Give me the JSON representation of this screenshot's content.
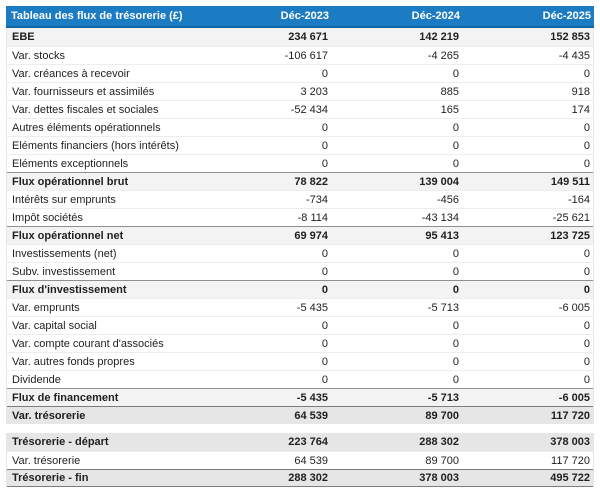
{
  "table": {
    "title": "Tableau des flux de trésorerie (£)",
    "columns": [
      "Déc-2023",
      "Déc-2024",
      "Déc-2025"
    ],
    "colors": {
      "header_bg": "#1b7cc4",
      "header_border": "#1266a4",
      "header_text": "#ffffff",
      "subtotal_row_bg": "#f3f3f3",
      "total_row_bg": "#e6e6e6",
      "row_separator": "#ededed",
      "strong_border": "#7d7d7d"
    },
    "sections": [
      {
        "rows": [
          {
            "label": "EBE",
            "values": [
              "234 671",
              "142 219",
              "152 853"
            ],
            "style": "subtotal"
          },
          {
            "label": "Var. stocks",
            "values": [
              "-106 617",
              "-4 265",
              "-4 435"
            ],
            "style": "normal"
          },
          {
            "label": "Var. créances à recevoir",
            "values": [
              "0",
              "0",
              "0"
            ],
            "style": "normal"
          },
          {
            "label": "Var. fournisseurs et assimilés",
            "values": [
              "3 203",
              "885",
              "918"
            ],
            "style": "normal"
          },
          {
            "label": "Var. dettes fiscales et sociales",
            "values": [
              "-52 434",
              "165",
              "174"
            ],
            "style": "normal"
          },
          {
            "label": "Autres éléments opérationnels",
            "values": [
              "0",
              "0",
              "0"
            ],
            "style": "normal"
          },
          {
            "label": "Eléments financiers (hors intérêts)",
            "values": [
              "0",
              "0",
              "0"
            ],
            "style": "normal"
          },
          {
            "label": "Eléments exceptionnels",
            "values": [
              "0",
              "0",
              "0"
            ],
            "style": "normal"
          },
          {
            "label": "Flux opérationnel brut",
            "values": [
              "78 822",
              "139 004",
              "149 511"
            ],
            "style": "subtotal"
          },
          {
            "label": "Intérêts sur emprunts",
            "values": [
              "-734",
              "-456",
              "-164"
            ],
            "style": "normal"
          },
          {
            "label": "Impôt sociétés",
            "values": [
              "-8 114",
              "-43 134",
              "-25 621"
            ],
            "style": "normal"
          },
          {
            "label": "Flux opérationnel net",
            "values": [
              "69 974",
              "95 413",
              "123 725"
            ],
            "style": "subtotal"
          },
          {
            "label": "Investissements (net)",
            "values": [
              "0",
              "0",
              "0"
            ],
            "style": "normal"
          },
          {
            "label": "Subv. investissement",
            "values": [
              "0",
              "0",
              "0"
            ],
            "style": "normal"
          },
          {
            "label": "Flux d'investissement",
            "values": [
              "0",
              "0",
              "0"
            ],
            "style": "subtotal"
          },
          {
            "label": "Var. emprunts",
            "values": [
              "-5 435",
              "-5 713",
              "-6 005"
            ],
            "style": "normal"
          },
          {
            "label": "Var. capital social",
            "values": [
              "0",
              "0",
              "0"
            ],
            "style": "normal"
          },
          {
            "label": "Var. compte courant d'associés",
            "values": [
              "0",
              "0",
              "0"
            ],
            "style": "normal"
          },
          {
            "label": "Var. autres fonds propres",
            "values": [
              "0",
              "0",
              "0"
            ],
            "style": "normal"
          },
          {
            "label": "Dividende",
            "values": [
              "0",
              "0",
              "0"
            ],
            "style": "normal"
          },
          {
            "label": "Flux de financement",
            "values": [
              "-5 435",
              "-5 713",
              "-6 005"
            ],
            "style": "subtotal"
          },
          {
            "label": "Var. trésorerie",
            "values": [
              "64 539",
              "89 700",
              "117 720"
            ],
            "style": "total"
          }
        ]
      },
      {
        "rows": [
          {
            "label": "Trésorerie - départ",
            "values": [
              "223 764",
              "288 302",
              "378 003"
            ],
            "style": "total"
          },
          {
            "label": "Var. trésorerie",
            "values": [
              "64 539",
              "89 700",
              "117 720"
            ],
            "style": "normal"
          },
          {
            "label": "Trésorerie - fin",
            "values": [
              "288 302",
              "378 003",
              "495 722"
            ],
            "style": "total-end"
          }
        ]
      }
    ]
  }
}
